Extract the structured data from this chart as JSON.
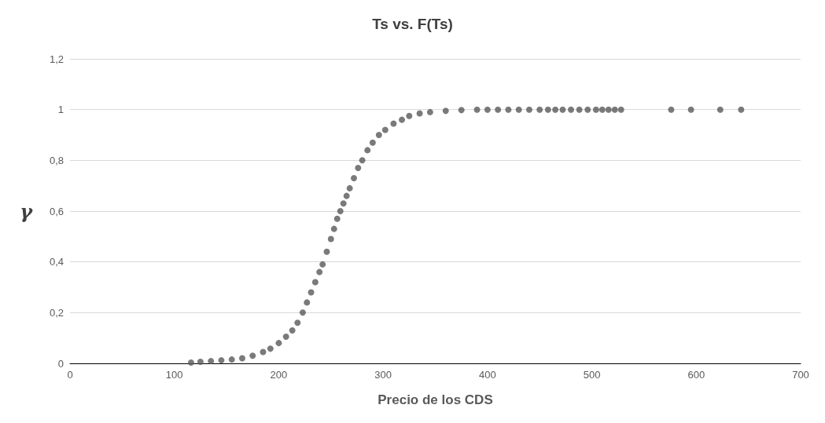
{
  "chart_data": {
    "type": "scatter",
    "title": "Ts vs. F(Ts)",
    "xlabel": "Precio de los CDS",
    "ylabel": "γ",
    "x": [
      116,
      125,
      135,
      145,
      155,
      165,
      175,
      185,
      192,
      200,
      207,
      213,
      218,
      223,
      227,
      231,
      235,
      239,
      242,
      246,
      250,
      253,
      256,
      259,
      262,
      265,
      268,
      272,
      276,
      280,
      285,
      290,
      296,
      302,
      310,
      318,
      325,
      335,
      345,
      360,
      375,
      390,
      400,
      410,
      420,
      430,
      440,
      450,
      458,
      465,
      472,
      480,
      488,
      496,
      504,
      510,
      516,
      522,
      528,
      576,
      595,
      623,
      643
    ],
    "series": [
      {
        "color": "#595959",
        "values": [
          0.003,
          0.006,
          0.009,
          0.012,
          0.015,
          0.02,
          0.03,
          0.045,
          0.058,
          0.08,
          0.105,
          0.13,
          0.16,
          0.2,
          0.24,
          0.28,
          0.32,
          0.36,
          0.39,
          0.44,
          0.49,
          0.53,
          0.57,
          0.6,
          0.63,
          0.66,
          0.69,
          0.73,
          0.77,
          0.8,
          0.84,
          0.87,
          0.9,
          0.92,
          0.945,
          0.96,
          0.975,
          0.985,
          0.99,
          0.995,
          0.998,
          1,
          1,
          1,
          1,
          1,
          1,
          1,
          1,
          1,
          1,
          1,
          1,
          1,
          1,
          1,
          1,
          1,
          1,
          1,
          1,
          1,
          1
        ]
      }
    ],
    "xlim": [
      0,
      700
    ],
    "xticks": [
      0,
      100,
      200,
      300,
      400,
      500,
      600,
      700
    ],
    "ylim": [
      0,
      1.2
    ],
    "yticks": [
      0,
      {
        "value": 0.2,
        "label": "0,2"
      },
      {
        "value": 0.4,
        "label": "0,4"
      },
      {
        "value": 0.6,
        "label": "0,6"
      },
      {
        "value": 0.8,
        "label": "0,8"
      },
      1,
      {
        "value": 1.2,
        "label": "1,2"
      }
    ],
    "grid": "y",
    "marker": "circle"
  }
}
